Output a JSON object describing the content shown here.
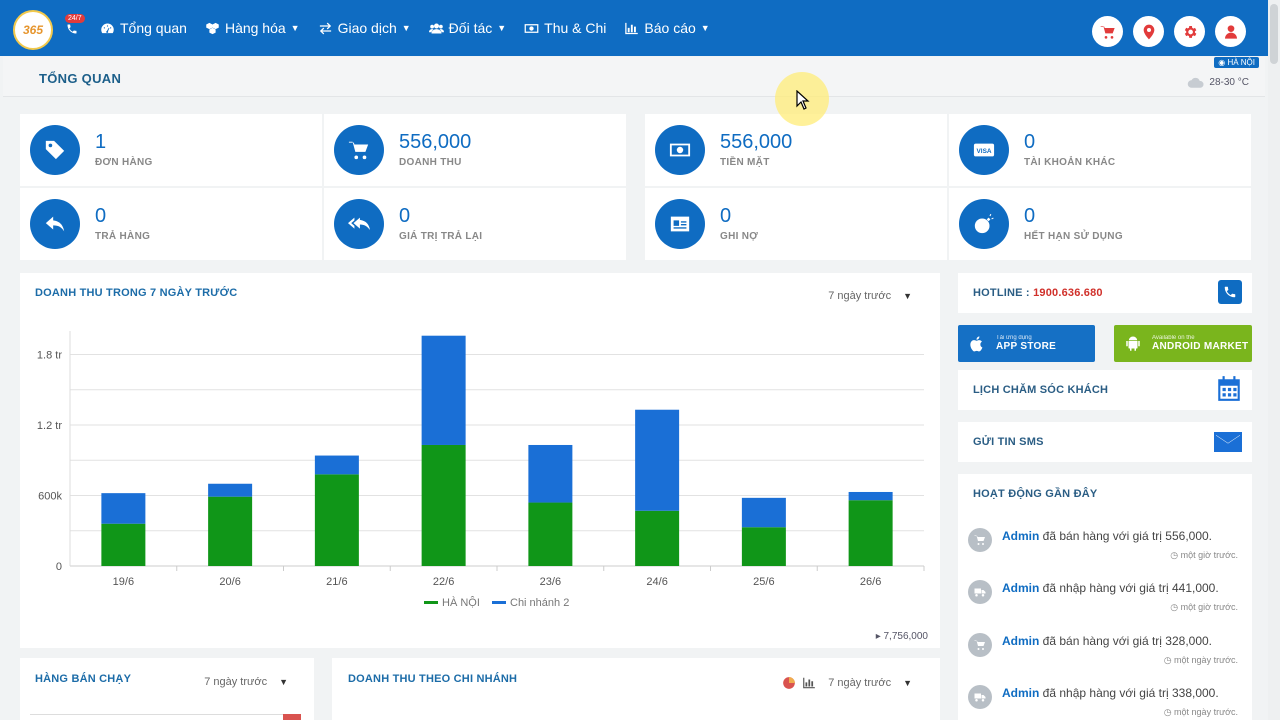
{
  "nav": {
    "logo": "365",
    "hotline_badge": "24/7",
    "items": [
      {
        "label": "Tổng quan",
        "icon": "dashboard-icon",
        "caret": false
      },
      {
        "label": "Hàng hóa",
        "icon": "cubes-icon",
        "caret": true
      },
      {
        "label": "Giao dịch",
        "icon": "exchange-icon",
        "caret": true
      },
      {
        "label": "Đối tác",
        "icon": "users-icon",
        "caret": true
      },
      {
        "label": "Thu & Chi",
        "icon": "money-icon",
        "caret": false
      },
      {
        "label": "Báo cáo",
        "icon": "bar-chart-icon",
        "caret": true
      }
    ]
  },
  "header": {
    "title": "TỔNG QUAN",
    "location": "HÀ NỘI",
    "weather": "28-30 °C"
  },
  "stats": [
    {
      "value": "1",
      "label": "ĐƠN HÀNG",
      "icon": "tag-icon"
    },
    {
      "value": "556,000",
      "label": "DOANH THU",
      "icon": "cart-icon"
    },
    {
      "value": "556,000",
      "label": "TIỀN MẶT",
      "icon": "cash-icon"
    },
    {
      "value": "0",
      "label": "TÀI KHOẢN KHÁC",
      "icon": "visa-icon"
    },
    {
      "value": "0",
      "label": "TRẢ HÀNG",
      "icon": "reply-icon"
    },
    {
      "value": "0",
      "label": "GIÁ TRỊ TRẢ LẠI",
      "icon": "reply-all-icon"
    },
    {
      "value": "0",
      "label": "GHI NỢ",
      "icon": "id-card-icon"
    },
    {
      "value": "0",
      "label": "HẾT HẠN SỬ DỤNG",
      "icon": "bomb-icon"
    }
  ],
  "revenue_panel": {
    "title": "DOANH THU TRONG 7 NGÀY TRƯỚC",
    "range": "7 ngày trước",
    "total": "7,756,000"
  },
  "chart_data": {
    "type": "bar",
    "stacked": true,
    "title": "DOANH THU TRONG 7 NGÀY TRƯỚC",
    "categories": [
      "19/6",
      "20/6",
      "21/6",
      "22/6",
      "23/6",
      "24/6",
      "25/6",
      "26/6"
    ],
    "series": [
      {
        "name": "HÀ NỘI",
        "color": "#109618",
        "values": [
          360000,
          590000,
          780000,
          1030000,
          540000,
          470000,
          330000,
          560000
        ]
      },
      {
        "name": "Chi nhánh 2",
        "color": "#1a6fd6",
        "values": [
          260000,
          110000,
          160000,
          930000,
          490000,
          860000,
          250000,
          70000
        ]
      }
    ],
    "yticks": [
      "0",
      "600k",
      "1.2 tr",
      "1.8 tr"
    ],
    "ytick_values": [
      0,
      600000,
      1200000,
      1800000
    ],
    "ylim": [
      0,
      2000000
    ],
    "legend": "bottom"
  },
  "right": {
    "hotline_label": "HOTLINE :",
    "hotline_number": "1900.636.680",
    "appstore_small": "Tải ứng dụng",
    "appstore_big": "APP STORE",
    "android_small": "Available on the",
    "android_big": "ANDROID MARKET",
    "calendar_label": "LỊCH CHĂM SÓC KHÁCH",
    "sms_label": "GỬI TIN SMS",
    "activity_title": "HOẠT ĐỘNG GẦN ĐÂY",
    "activities": [
      {
        "user": "Admin",
        "text": " đã bán hàng với giá trị 556,000.",
        "ago": "một giờ trước.",
        "icon": "cart-icon"
      },
      {
        "user": "Admin",
        "text": " đã nhập hàng với giá trị 441,000.",
        "ago": "một giờ trước.",
        "icon": "truck-icon"
      },
      {
        "user": "Admin",
        "text": " đã bán hàng với giá trị 328,000.",
        "ago": "một ngày trước.",
        "icon": "cart-icon"
      },
      {
        "user": "Admin",
        "text": " đã nhập hàng với giá trị 338,000.",
        "ago": "một ngày trước.",
        "icon": "truck-icon"
      }
    ]
  },
  "bottom": {
    "bestseller_title": "HÀNG BÁN CHẠY",
    "bestseller_range": "7 ngày trước",
    "branch_title": "DOANH THU THEO CHI NHÁNH",
    "branch_range": "7 ngày trước"
  }
}
